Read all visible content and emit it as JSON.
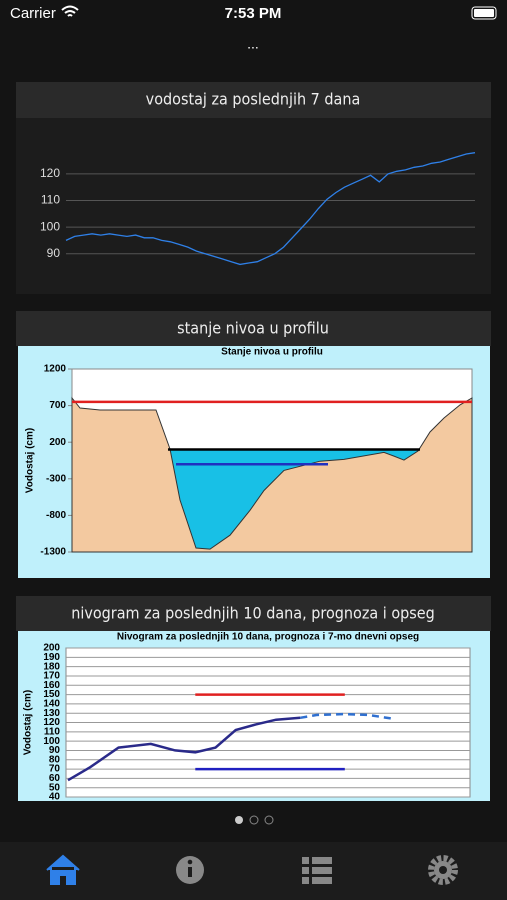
{
  "status_bar": {
    "carrier": "Carrier",
    "time": "7:53 PM"
  },
  "menu": "...",
  "card_titles": [
    "vodostaj za poslednjih 7 dana",
    "stanje nivoa u profilu",
    "nivogram za poslednjih 10 dana, prognoza i opseg"
  ],
  "chart_data": [
    {
      "type": "line",
      "ylim": [
        82,
        129
      ],
      "yticks": [
        90,
        100,
        110,
        120
      ],
      "grid": true,
      "series": [
        {
          "color": "#2f80e8",
          "style": "line",
          "values": [
            95,
            96.5,
            97,
            97.5,
            97,
            97.5,
            97,
            96.5,
            97,
            96,
            96,
            95,
            94.5,
            93.5,
            92.5,
            91,
            90,
            89,
            88,
            87,
            86,
            86.5,
            87,
            88.5,
            90,
            92.5,
            96,
            99.5,
            103,
            107,
            110.5,
            113,
            115,
            116.5,
            118,
            119.5,
            117,
            120,
            121,
            121.5,
            122.5,
            123,
            124,
            124.5,
            125.5,
            126.5,
            127.5,
            128
          ]
        }
      ]
    },
    {
      "type": "area",
      "title": "Stanje nivoa u profilu",
      "y_label": "Vodostaj (cm)",
      "xlim": [
        0,
        100
      ],
      "ylim": [
        -1300,
        1200
      ],
      "yticks": [
        1200,
        700,
        200,
        -300,
        -800,
        -1300
      ],
      "series": [
        {
          "color": "#18c0e6",
          "style": "area",
          "x": [
            24,
            87
          ],
          "values": [
            100,
            100
          ]
        },
        {
          "color": "#f3c9a0",
          "style": "area",
          "x": [
            0,
            2,
            7,
            21,
            24.5,
            27,
            31,
            34.5,
            39.5,
            44.5,
            48,
            53,
            62,
            68,
            78,
            80.5,
            83,
            86.5,
            89.5,
            93,
            97,
            100
          ],
          "values": [
            804,
            667,
            640,
            640,
            107,
            -590,
            -1245,
            -1260,
            -1070,
            -730,
            -460,
            -185,
            -60,
            -35,
            60,
            10,
            -45,
            80,
            340,
            530,
            710,
            804
          ]
        },
        {
          "color": "#000000",
          "style": "line",
          "x": [
            24,
            87
          ],
          "values": [
            100,
            100
          ]
        },
        {
          "color": "#e02020",
          "style": "line",
          "x": [
            0,
            100
          ],
          "values": [
            750,
            750
          ]
        },
        {
          "color": "#2030c0",
          "style": "line",
          "x": [
            26,
            64
          ],
          "values": [
            -100,
            -100
          ]
        }
      ]
    },
    {
      "type": "line",
      "title": "Nivogram za poslednjih 10 dana, prognoza i 7-mo dnevni opseg",
      "y_label": "Vodostaj (cm)",
      "xlim": [
        0,
        100
      ],
      "ylim": [
        40,
        200
      ],
      "yticks": [
        40,
        50,
        60,
        70,
        80,
        90,
        100,
        110,
        120,
        130,
        140,
        150,
        160,
        170,
        180,
        190,
        200
      ],
      "grid": true,
      "series": [
        {
          "color": "#e02020",
          "style": "line",
          "x": [
            32,
            69
          ],
          "values": [
            150,
            150
          ]
        },
        {
          "color": "#2020c0",
          "style": "line",
          "x": [
            32,
            69
          ],
          "values": [
            70,
            70
          ]
        },
        {
          "color": "#2a2a8a",
          "style": "line",
          "x": [
            0.5,
            6,
            13,
            21,
            27,
            32,
            37,
            42,
            47,
            52,
            58
          ],
          "values": [
            58,
            72,
            93,
            97,
            90,
            88,
            93,
            112,
            118,
            123,
            125
          ]
        },
        {
          "color": "#3070d0",
          "style": "dashed",
          "x": [
            58,
            62,
            69,
            75,
            81
          ],
          "values": [
            125,
            128,
            129,
            128,
            124
          ]
        }
      ]
    }
  ]
}
